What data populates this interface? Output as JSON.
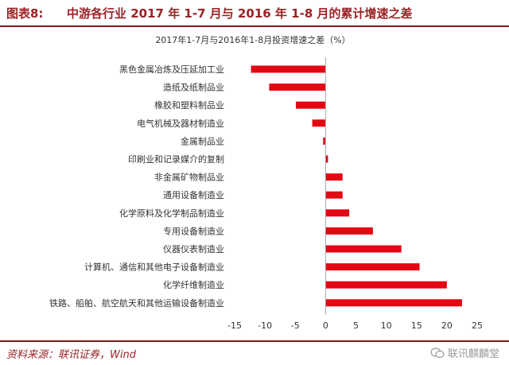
{
  "figure": {
    "label": "图表8:",
    "title": "中游各行业 2017 年 1-7 月与 2016 年 1-8 月的累计增速之差"
  },
  "footer": {
    "source": "资料来源：联讯证券，Wind",
    "watermark": "联讯麒麟堂",
    "watermark_icon": "wechat-icon"
  },
  "colors": {
    "bar": "#e30613",
    "header_text": "#9b2226",
    "rule": "#7a1c1c"
  },
  "chart_data": {
    "type": "bar",
    "orientation": "horizontal",
    "title": "2017年1-7月与2016年1-8月投资增速之差（%）",
    "categories": [
      "黑色金属冶炼及压延加工业",
      "造纸及纸制品业",
      "橡胶和塑料制品业",
      "电气机械及器材制造业",
      "金属制品业",
      "印刷业和记录媒介的复制",
      "非金属矿物制品业",
      "通用设备制造业",
      "化学原料及化学制品制造业",
      "专用设备制造业",
      "仪器仪表制造业",
      "计算机、通信和其他电子设备制造业",
      "化学纤维制造业",
      "铁路、船舶、航空航天和其他运输设备制造业"
    ],
    "values": [
      -12.3,
      -9.3,
      -4.9,
      -2.2,
      -0.4,
      0.4,
      2.8,
      2.8,
      3.9,
      7.8,
      12.5,
      15.5,
      20.0,
      22.5
    ],
    "xlim": [
      -15,
      25
    ],
    "xticks": [
      -15,
      -10,
      -5,
      0,
      5,
      10,
      15,
      20,
      25
    ],
    "grid": false,
    "legend": "none"
  }
}
